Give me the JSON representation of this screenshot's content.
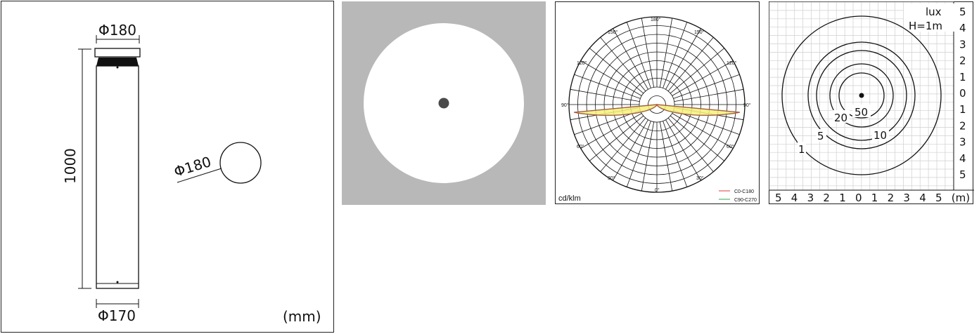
{
  "dimension_drawing": {
    "top_diameter": "Φ180",
    "height": "1000",
    "base_diameter": "Φ170",
    "head_diameter": "Φ180",
    "units": "(mm)"
  },
  "polar_diagram": {
    "angle_labels_top": [
      "180°",
      "150°",
      "150°"
    ],
    "angle_labels_mid_upper": [
      "120°",
      "120°"
    ],
    "angle_labels_mid": [
      "90°",
      "90°"
    ],
    "angle_labels_mid_lower": [
      "60°",
      "60°"
    ],
    "angle_labels_bottom": [
      "30°",
      "0°",
      "30°"
    ],
    "unit_label": "cd/klm",
    "legend": [
      {
        "name": "C0-C180",
        "color": "#e23b3b"
      },
      {
        "name": "C90-C270",
        "color": "#2fa84f"
      }
    ],
    "fill_color": "#f6f07a"
  },
  "isolux_diagram": {
    "unit": "lux",
    "height_note": "H=1m",
    "right_axis": [
      "5",
      "4",
      "3",
      "2",
      "1",
      "0",
      "1",
      "2",
      "3",
      "4",
      "5"
    ],
    "bottom_axis": [
      "5",
      "4",
      "3",
      "2",
      "1",
      "0",
      "1",
      "2",
      "3",
      "4",
      "5",
      "(m)"
    ],
    "contour_labels": [
      "50",
      "20",
      "10",
      "5",
      "1"
    ]
  }
}
